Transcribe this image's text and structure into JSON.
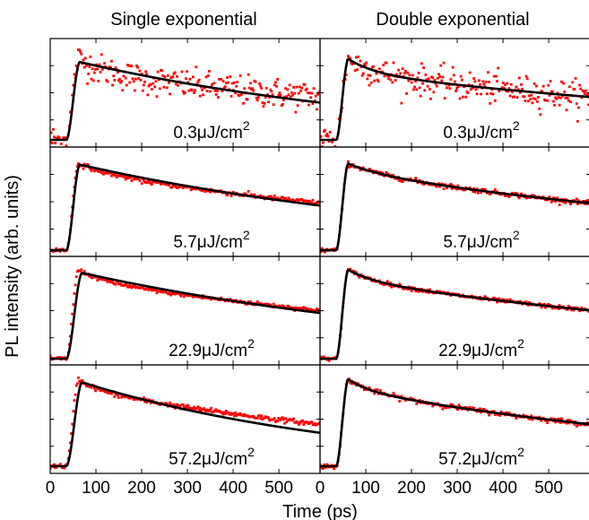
{
  "chart_data": {
    "type": "scatter",
    "column_titles": [
      "Single exponential",
      "Double exponential"
    ],
    "xlabel": "Time (ps)",
    "ylabel": "PL intensity (arb. units)",
    "xlim": [
      0,
      590
    ],
    "x_ticks": [
      0,
      100,
      200,
      300,
      400,
      500
    ],
    "grid": false,
    "colors": {
      "data": "#ff0000",
      "fit": "#000000",
      "frame": "#000000"
    },
    "panels": [
      {
        "fluence": "0.3",
        "unit": "μJ/cm",
        "exponent": "2",
        "noise": 0.075,
        "data": {
          "baseline": 0.05,
          "onset": 35,
          "peak_time": 62,
          "peak": 0.86,
          "a1": 0.14,
          "tau1": 60,
          "a2": 0.72,
          "tau2": 1300
        },
        "fits": [
          {
            "model": "single",
            "baseline": 0.05,
            "onset": 35,
            "peak_time": 65,
            "peak": 0.83,
            "tau": 780
          },
          {
            "model": "double",
            "baseline": 0.05,
            "onset": 35,
            "peak_time": 62,
            "peak": 0.86,
            "a1": 0.14,
            "tau1": 60,
            "a2": 0.72,
            "tau2": 1300
          }
        ]
      },
      {
        "fluence": "5.7",
        "unit": "μJ/cm",
        "exponent": "2",
        "noise": 0.012,
        "data": {
          "baseline": 0.04,
          "onset": 35,
          "peak_time": 62,
          "peak": 0.9,
          "a1": 0.08,
          "tau1": 70,
          "a2": 0.82,
          "tau2": 1100
        },
        "fits": [
          {
            "model": "single",
            "baseline": 0.04,
            "onset": 35,
            "peak_time": 65,
            "peak": 0.89,
            "tau": 860
          },
          {
            "model": "double",
            "baseline": 0.04,
            "onset": 35,
            "peak_time": 62,
            "peak": 0.9,
            "a1": 0.08,
            "tau1": 70,
            "a2": 0.82,
            "tau2": 1100
          }
        ]
      },
      {
        "fluence": "22.9",
        "unit": "μJ/cm",
        "exponent": "2",
        "noise": 0.01,
        "data": {
          "baseline": 0.04,
          "onset": 35,
          "peak_time": 62,
          "peak": 0.93,
          "a1": 0.1,
          "tau1": 55,
          "a2": 0.83,
          "tau2": 1150
        },
        "fits": [
          {
            "model": "single",
            "baseline": 0.04,
            "onset": 35,
            "peak_time": 70,
            "peak": 0.9,
            "tau": 880
          },
          {
            "model": "double",
            "baseline": 0.04,
            "onset": 35,
            "peak_time": 62,
            "peak": 0.93,
            "a1": 0.1,
            "tau1": 55,
            "a2": 0.83,
            "tau2": 1150
          }
        ]
      },
      {
        "fluence": "57.2",
        "unit": "μJ/cm",
        "exponent": "2",
        "noise": 0.012,
        "data": {
          "baseline": 0.05,
          "onset": 35,
          "peak_time": 62,
          "peak": 0.92,
          "a1": 0.1,
          "tau1": 45,
          "a2": 0.82,
          "tau2": 950
        },
        "fits": [
          {
            "model": "single",
            "baseline": 0.05,
            "onset": 35,
            "peak_time": 70,
            "peak": 0.89,
            "tau": 620
          },
          {
            "model": "double",
            "baseline": 0.05,
            "onset": 35,
            "peak_time": 62,
            "peak": 0.92,
            "a1": 0.1,
            "tau1": 45,
            "a2": 0.82,
            "tau2": 950
          }
        ]
      }
    ]
  }
}
